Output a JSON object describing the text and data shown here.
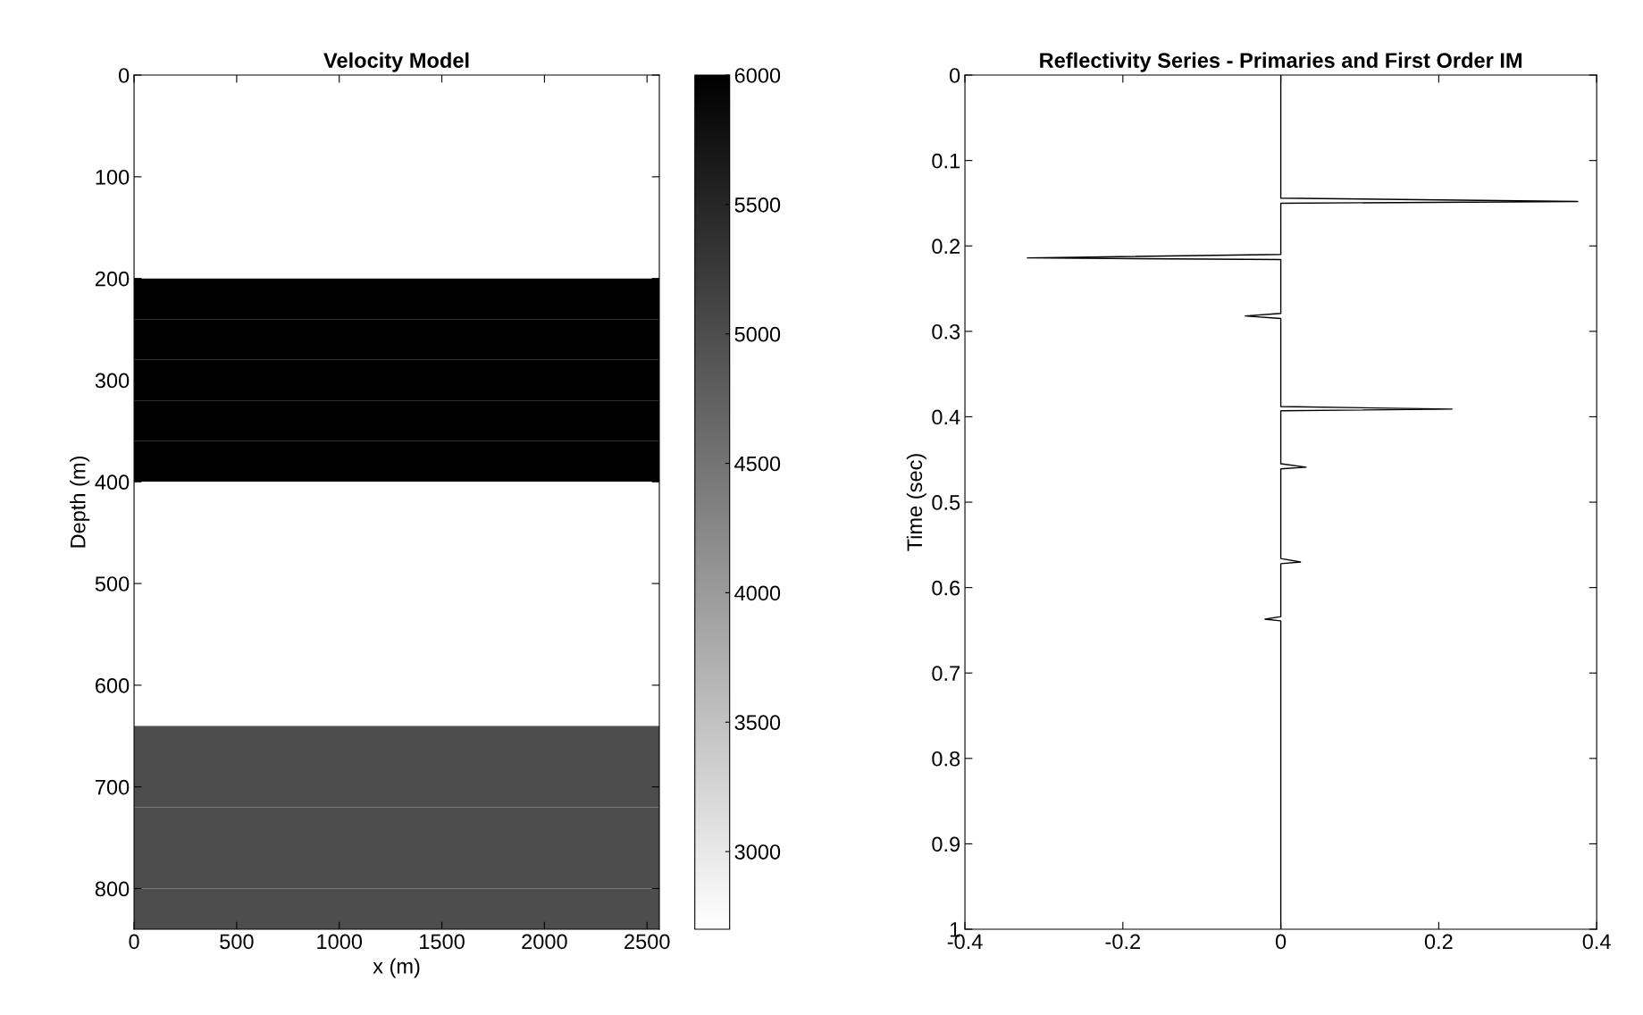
{
  "chart_data": [
    {
      "type": "heatmap",
      "title": "Velocity Model",
      "xlabel": "x (m)",
      "ylabel": "Depth (m)",
      "xlim": [
        0,
        2560
      ],
      "ylim": [
        840,
        0
      ],
      "xticks": [
        0,
        500,
        1000,
        1500,
        2000,
        2500
      ],
      "yticks": [
        0,
        100,
        200,
        300,
        400,
        500,
        600,
        700,
        800
      ],
      "clim": [
        2700,
        6000
      ],
      "cticks": [
        3000,
        3500,
        4000,
        4500,
        5000,
        5500,
        6000
      ],
      "cells": [
        [
          2700
        ],
        [
          2700
        ],
        [
          2700
        ],
        [
          2700
        ],
        [
          2700
        ],
        [
          6000
        ],
        [
          6000
        ],
        [
          6000
        ],
        [
          6000
        ],
        [
          6000
        ],
        [
          2700
        ],
        [
          2700
        ],
        [
          2700
        ],
        [
          2700
        ],
        [
          2700
        ],
        [
          2700
        ],
        [
          5000
        ],
        [
          5000
        ],
        [
          5000
        ],
        [
          5000
        ],
        [
          5000
        ]
      ],
      "grid": false
    },
    {
      "type": "line",
      "orientation": "horizontal",
      "title": "Reflectivity Series - Primaries and First Order IM",
      "ylabel": "Time (sec)",
      "xlim": [
        -0.4,
        0.4
      ],
      "ylim": [
        1,
        0
      ],
      "xticks": [
        {
          "value": -0.4,
          "label": "-0.4"
        },
        {
          "value": -0.2,
          "label": "-0.2"
        },
        0,
        0.2,
        0.4
      ],
      "yticks": [
        0,
        0.1,
        0.2,
        0.3,
        0.4,
        0.5,
        0.6,
        0.7,
        0.8,
        0.9,
        1
      ],
      "grid": false,
      "marker": "none",
      "line_style": "solid",
      "series": [
        {
          "color": "#000000",
          "x": [
            0,
            0.144,
            0.148,
            0.15,
            0.21,
            0.214,
            0.216,
            0.279,
            0.282,
            0.285,
            0.388,
            0.391,
            0.393,
            0.455,
            0.459,
            0.461,
            0.566,
            0.57,
            0.572,
            0.634,
            0.637,
            0.639,
            1
          ],
          "values": [
            0,
            0,
            0.376,
            0,
            0,
            -0.321,
            0,
            0,
            -0.045,
            0,
            0,
            0.217,
            0,
            0,
            0.032,
            0,
            0,
            0.025,
            0,
            0,
            -0.02,
            0,
            0
          ]
        }
      ]
    }
  ]
}
